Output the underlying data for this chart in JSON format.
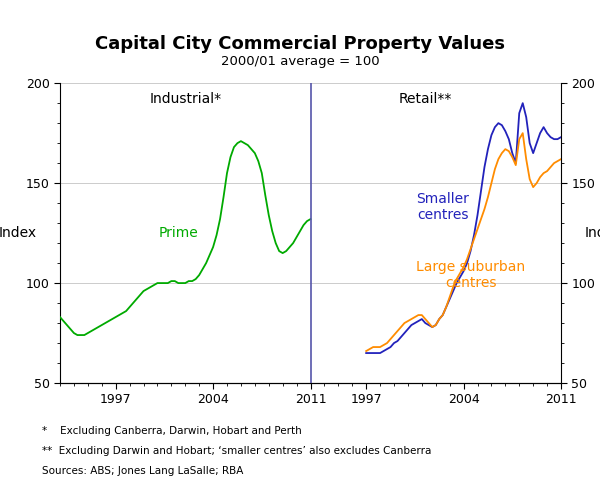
{
  "title": "Capital City Commercial Property Values",
  "subtitle": "2000/01 average = 100",
  "ylabel_left": "Index",
  "ylabel_right": "Index",
  "label_industrial": "Industrial*",
  "label_retail": "Retail**",
  "label_prime": "Prime",
  "label_smaller": "Smaller\ncentres",
  "label_large": "Large suburban\ncentres",
  "ylim": [
    50,
    200
  ],
  "yticks": [
    50,
    100,
    150,
    200
  ],
  "footnote1": "*    Excluding Canberra, Darwin, Hobart and Perth",
  "footnote2": "**  Excluding Darwin and Hobart; ‘smaller centres’ also excludes Canberra",
  "footnote3": "Sources: ABS; Jones Lang LaSalle; RBA",
  "color_prime": "#00AA00",
  "color_smaller": "#2222BB",
  "color_large": "#FF8C00",
  "divider_color": "#5555AA",
  "grid_color": "#CCCCCC",
  "background_color": "#FFFFFF",
  "prime_x": [
    1993.0,
    1993.25,
    1993.5,
    1993.75,
    1994.0,
    1994.25,
    1994.5,
    1994.75,
    1995.0,
    1995.25,
    1995.5,
    1995.75,
    1996.0,
    1996.25,
    1996.5,
    1996.75,
    1997.0,
    1997.25,
    1997.5,
    1997.75,
    1998.0,
    1998.25,
    1998.5,
    1998.75,
    1999.0,
    1999.25,
    1999.5,
    1999.75,
    2000.0,
    2000.25,
    2000.5,
    2000.75,
    2001.0,
    2001.25,
    2001.5,
    2001.75,
    2002.0,
    2002.25,
    2002.5,
    2002.75,
    2003.0,
    2003.25,
    2003.5,
    2003.75,
    2004.0,
    2004.25,
    2004.5,
    2004.75,
    2005.0,
    2005.25,
    2005.5,
    2005.75,
    2006.0,
    2006.25,
    2006.5,
    2006.75,
    2007.0,
    2007.25,
    2007.5,
    2007.75,
    2008.0,
    2008.25,
    2008.5,
    2008.75,
    2009.0,
    2009.25,
    2009.5,
    2009.75,
    2010.0,
    2010.25,
    2010.5,
    2010.75,
    2011.0
  ],
  "prime_y": [
    83,
    81,
    79,
    77,
    75,
    74,
    74,
    74,
    75,
    76,
    77,
    78,
    79,
    80,
    81,
    82,
    83,
    84,
    85,
    86,
    88,
    90,
    92,
    94,
    96,
    97,
    98,
    99,
    100,
    100,
    100,
    100,
    101,
    101,
    100,
    100,
    100,
    101,
    101,
    102,
    104,
    107,
    110,
    114,
    118,
    124,
    132,
    143,
    155,
    163,
    168,
    170,
    171,
    170,
    169,
    167,
    165,
    161,
    155,
    144,
    134,
    126,
    120,
    116,
    115,
    116,
    118,
    120,
    123,
    126,
    129,
    131,
    132
  ],
  "smaller_x": [
    1993.0,
    1993.25,
    1993.5,
    1993.75,
    1994.0,
    1994.25,
    1994.5,
    1994.75,
    1995.0,
    1995.25,
    1995.5,
    1995.75,
    1996.0,
    1996.25,
    1996.5,
    1996.75,
    1997.0,
    1997.25,
    1997.5,
    1997.75,
    1998.0,
    1998.25,
    1998.5,
    1998.75,
    1999.0,
    1999.25,
    1999.5,
    1999.75,
    2000.0,
    2000.25,
    2000.5,
    2000.75,
    2001.0,
    2001.25,
    2001.5,
    2001.75,
    2002.0,
    2002.25,
    2002.5,
    2002.75,
    2003.0,
    2003.25,
    2003.5,
    2003.75,
    2004.0,
    2004.25,
    2004.5,
    2004.75,
    2005.0,
    2005.25,
    2005.5,
    2005.75,
    2006.0,
    2006.25,
    2006.5,
    2006.75,
    2007.0,
    2007.25,
    2007.5,
    2007.75,
    2008.0,
    2008.25,
    2008.5,
    2008.75,
    2009.0,
    2009.25,
    2009.5,
    2009.75,
    2010.0,
    2010.25,
    2010.5,
    2010.75,
    2011.0
  ],
  "smaller_y": [
    null,
    null,
    null,
    null,
    null,
    null,
    null,
    null,
    null,
    null,
    null,
    null,
    null,
    null,
    null,
    null,
    65,
    65,
    65,
    65,
    65,
    66,
    67,
    68,
    70,
    71,
    73,
    75,
    77,
    79,
    80,
    81,
    82,
    80,
    79,
    78,
    79,
    82,
    84,
    88,
    92,
    96,
    100,
    103,
    106,
    110,
    116,
    124,
    134,
    146,
    158,
    167,
    174,
    178,
    180,
    179,
    176,
    172,
    165,
    160,
    185,
    190,
    183,
    170,
    165,
    170,
    175,
    178,
    175,
    173,
    172,
    172,
    173
  ],
  "large_x": [
    1993.0,
    1993.25,
    1993.5,
    1993.75,
    1994.0,
    1994.25,
    1994.5,
    1994.75,
    1995.0,
    1995.25,
    1995.5,
    1995.75,
    1996.0,
    1996.25,
    1996.5,
    1996.75,
    1997.0,
    1997.25,
    1997.5,
    1997.75,
    1998.0,
    1998.25,
    1998.5,
    1998.75,
    1999.0,
    1999.25,
    1999.5,
    1999.75,
    2000.0,
    2000.25,
    2000.5,
    2000.75,
    2001.0,
    2001.25,
    2001.5,
    2001.75,
    2002.0,
    2002.25,
    2002.5,
    2002.75,
    2003.0,
    2003.25,
    2003.5,
    2003.75,
    2004.0,
    2004.25,
    2004.5,
    2004.75,
    2005.0,
    2005.25,
    2005.5,
    2005.75,
    2006.0,
    2006.25,
    2006.5,
    2006.75,
    2007.0,
    2007.25,
    2007.5,
    2007.75,
    2008.0,
    2008.25,
    2008.5,
    2008.75,
    2009.0,
    2009.25,
    2009.5,
    2009.75,
    2010.0,
    2010.25,
    2010.5,
    2010.75,
    2011.0
  ],
  "large_y": [
    null,
    null,
    null,
    null,
    null,
    null,
    null,
    null,
    null,
    null,
    null,
    null,
    null,
    null,
    null,
    null,
    66,
    67,
    68,
    68,
    68,
    69,
    70,
    72,
    74,
    76,
    78,
    80,
    81,
    82,
    83,
    84,
    84,
    82,
    80,
    78,
    79,
    82,
    84,
    88,
    93,
    98,
    102,
    105,
    108,
    112,
    117,
    122,
    127,
    132,
    137,
    143,
    150,
    157,
    162,
    165,
    167,
    166,
    163,
    159,
    172,
    175,
    162,
    152,
    148,
    150,
    153,
    155,
    156,
    158,
    160,
    161,
    162
  ]
}
